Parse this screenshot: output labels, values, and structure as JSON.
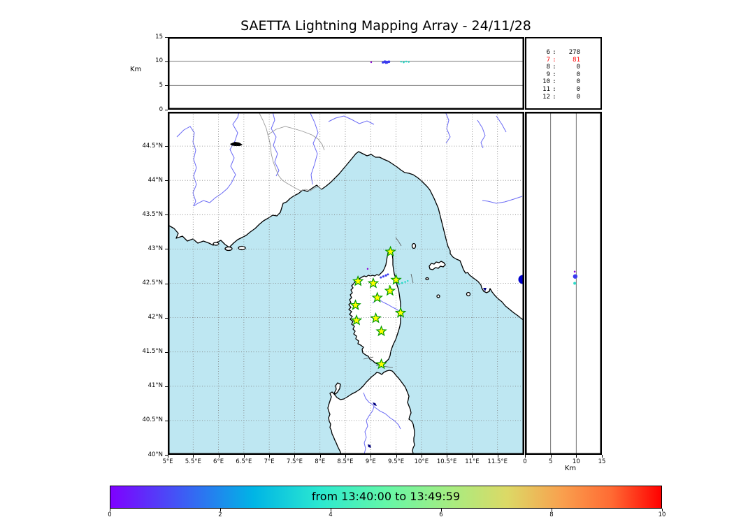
{
  "chart_data": {
    "title": "SAETTA Lightning Mapping Array - 24/11/28",
    "type_overview": [
      "scatter",
      "scatter",
      "scatter",
      "table"
    ],
    "colors": {
      "purple": "#8B00D6",
      "blue": "#3A3AEF",
      "cyan": "#2BD9C8",
      "green": "#44CC22",
      "sea": "#BEE7F2",
      "land": "#FFFFFF",
      "coast": "#000000",
      "river": "#6A6AF5",
      "border": "#999999",
      "grid": "#808080",
      "station_fill": "#FFFF00",
      "station_edge": "#009900",
      "lake": "#0000CC",
      "highlight": "#FF0000"
    },
    "counts": {
      "rows": [
        {
          "label": "6",
          "value": "278",
          "highlight": false
        },
        {
          "label": "7",
          "value": "81",
          "highlight": true
        },
        {
          "label": "8",
          "value": "0",
          "highlight": false
        },
        {
          "label": "9",
          "value": "0",
          "highlight": false
        },
        {
          "label": "10",
          "value": "0",
          "highlight": false
        },
        {
          "label": "11",
          "value": "0",
          "highlight": false
        },
        {
          "label": "12",
          "value": "0",
          "highlight": false
        }
      ]
    },
    "panels": {
      "alt_lon": {
        "type": "scatter",
        "ylabel": "Km",
        "ylim": [
          0,
          15
        ],
        "xlim": [
          5,
          12.05
        ],
        "yticks": [
          {
            "v": 15,
            "label": "15"
          },
          {
            "v": 10,
            "label": "10"
          },
          {
            "v": 5,
            "label": "5"
          },
          {
            "v": 0,
            "label": "0"
          }
        ],
        "points": [
          {
            "x": 9.01,
            "y": 9.8,
            "c": "purple",
            "r": 1.2
          },
          {
            "x": 9.24,
            "y": 9.75,
            "c": "blue",
            "r": 1.6
          },
          {
            "x": 9.28,
            "y": 9.9,
            "c": "blue",
            "r": 2.0
          },
          {
            "x": 9.32,
            "y": 9.8,
            "c": "blue",
            "r": 2.2
          },
          {
            "x": 9.36,
            "y": 9.9,
            "c": "blue",
            "r": 1.8
          },
          {
            "x": 9.3,
            "y": 9.65,
            "c": "blue",
            "r": 1.4
          },
          {
            "x": 9.6,
            "y": 9.9,
            "c": "cyan",
            "r": 1.2
          },
          {
            "x": 9.65,
            "y": 9.8,
            "c": "cyan",
            "r": 1.4
          },
          {
            "x": 9.7,
            "y": 9.95,
            "c": "cyan",
            "r": 1.3
          },
          {
            "x": 9.75,
            "y": 9.85,
            "c": "cyan",
            "r": 1.2
          }
        ]
      },
      "map": {
        "type": "scatter",
        "xlim": [
          5,
          12.05
        ],
        "ylim": [
          40,
          45
        ],
        "lat_ticks": [
          {
            "v": 44.5,
            "label": "44.5°N"
          },
          {
            "v": 44,
            "label": "44°N"
          },
          {
            "v": 43.5,
            "label": "43.5°N"
          },
          {
            "v": 43,
            "label": "43°N"
          },
          {
            "v": 42.5,
            "label": "42.5°N"
          },
          {
            "v": 42,
            "label": "42°N"
          },
          {
            "v": 41.5,
            "label": "41.5°N"
          },
          {
            "v": 41,
            "label": "41°N"
          },
          {
            "v": 40.5,
            "label": "40.5°N"
          },
          {
            "v": 40,
            "label": "40°N"
          }
        ],
        "lon_ticks": [
          {
            "v": 5,
            "label": "5°E"
          },
          {
            "v": 5.5,
            "label": "5.5°E"
          },
          {
            "v": 6,
            "label": "6°E"
          },
          {
            "v": 6.5,
            "label": "6.5°E"
          },
          {
            "v": 7,
            "label": "7°E"
          },
          {
            "v": 7.5,
            "label": "7.5°E"
          },
          {
            "v": 8,
            "label": "8°E"
          },
          {
            "v": 8.5,
            "label": "8.5°E"
          },
          {
            "v": 9,
            "label": "9°E"
          },
          {
            "v": 9.5,
            "label": "9.5°E"
          },
          {
            "v": 10,
            "label": "10°E"
          },
          {
            "v": 10.5,
            "label": "10.5°E"
          },
          {
            "v": 11,
            "label": "11°E"
          },
          {
            "v": 11.5,
            "label": "11.5°E"
          }
        ],
        "stations": [
          {
            "lon": 9.39,
            "lat": 42.96
          },
          {
            "lon": 8.75,
            "lat": 42.53
          },
          {
            "lon": 9.05,
            "lat": 42.5
          },
          {
            "lon": 9.5,
            "lat": 42.55
          },
          {
            "lon": 9.38,
            "lat": 42.39
          },
          {
            "lon": 9.13,
            "lat": 42.29
          },
          {
            "lon": 8.7,
            "lat": 42.18
          },
          {
            "lon": 9.59,
            "lat": 42.07
          },
          {
            "lon": 9.1,
            "lat": 41.99
          },
          {
            "lon": 8.72,
            "lat": 41.96
          },
          {
            "lon": 9.21,
            "lat": 41.8
          },
          {
            "lon": 9.21,
            "lat": 41.32
          }
        ],
        "points": [
          {
            "x": 8.94,
            "y": 42.71,
            "c": "purple",
            "r": 1.2
          },
          {
            "x": 9.2,
            "y": 42.585,
            "c": "blue",
            "r": 1.5
          },
          {
            "x": 9.25,
            "y": 42.6,
            "c": "blue",
            "r": 1.6
          },
          {
            "x": 9.3,
            "y": 42.615,
            "c": "blue",
            "r": 1.6
          },
          {
            "x": 9.34,
            "y": 42.63,
            "c": "blue",
            "r": 1.4
          },
          {
            "x": 9.56,
            "y": 42.49,
            "c": "cyan",
            "r": 1.3
          },
          {
            "x": 9.62,
            "y": 42.505,
            "c": "cyan",
            "r": 1.4
          },
          {
            "x": 9.68,
            "y": 42.52,
            "c": "cyan",
            "r": 1.3
          },
          {
            "x": 9.73,
            "y": 42.535,
            "c": "cyan",
            "r": 1.2
          },
          {
            "x": 9.37,
            "y": 42.46,
            "c": "green",
            "r": 1.2
          }
        ]
      },
      "alt_lat": {
        "type": "scatter",
        "xlabel": "Km",
        "xlim": [
          0,
          15
        ],
        "ylim": [
          40,
          45
        ],
        "xticks": [
          {
            "v": 0,
            "label": "0"
          },
          {
            "v": 5,
            "label": "5"
          },
          {
            "v": 10,
            "label": "10"
          },
          {
            "v": 15,
            "label": "15"
          }
        ],
        "points": [
          {
            "x": 9.7,
            "y": 42.67,
            "c": "purple",
            "r": 1.3
          },
          {
            "x": 9.8,
            "y": 42.6,
            "c": "blue",
            "r": 3.2
          },
          {
            "x": 9.7,
            "y": 42.5,
            "c": "cyan",
            "r": 2.0
          }
        ]
      }
    },
    "colorbar": {
      "label": "from 13:40:00 to 13:49:59",
      "min": 0,
      "max": 10,
      "ticks": [
        {
          "v": 0,
          "label": "0"
        },
        {
          "v": 2,
          "label": "2"
        },
        {
          "v": 4,
          "label": "4"
        },
        {
          "v": 6,
          "label": "6"
        },
        {
          "v": 8,
          "label": "8"
        },
        {
          "v": 10,
          "label": "10"
        }
      ],
      "gradient": [
        {
          "pos": 0,
          "color": "#7F00FF"
        },
        {
          "pos": 13,
          "color": "#3E5BF5"
        },
        {
          "pos": 26,
          "color": "#00B5E5"
        },
        {
          "pos": 38,
          "color": "#2BE8D0"
        },
        {
          "pos": 50,
          "color": "#64F7A8"
        },
        {
          "pos": 62,
          "color": "#A8EC80"
        },
        {
          "pos": 72,
          "color": "#DCD966"
        },
        {
          "pos": 82,
          "color": "#F9A04E"
        },
        {
          "pos": 91,
          "color": "#FF6A33"
        },
        {
          "pos": 100,
          "color": "#FF0000"
        }
      ]
    }
  }
}
